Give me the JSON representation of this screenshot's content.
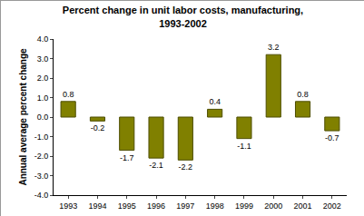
{
  "chart_data": {
    "type": "bar",
    "title": "Percent change in unit labor costs, manufacturing, 1993-2002",
    "y_label": "Annual average percent change",
    "categories": [
      "1993",
      "1994",
      "1995",
      "1996",
      "1997",
      "1998",
      "1999",
      "2000",
      "2001",
      "2002"
    ],
    "values": [
      0.8,
      -0.2,
      -1.7,
      -2.1,
      -2.2,
      0.4,
      -1.1,
      3.2,
      0.8,
      -0.7
    ],
    "color": "#808000",
    "ylim": [
      -4,
      4
    ],
    "yticks": [
      {
        "value": -4,
        "label": "-4.0"
      },
      {
        "value": -3,
        "label": "-3.0"
      },
      {
        "value": -2,
        "label": "-2.0"
      },
      {
        "value": -1,
        "label": "-1.0"
      },
      {
        "value": 0,
        "label": "0.0"
      },
      {
        "value": 1,
        "label": "1.0"
      },
      {
        "value": 2,
        "label": "2.0"
      },
      {
        "value": 3,
        "label": "3.0"
      },
      {
        "value": 4,
        "label": "4.0"
      }
    ],
    "grid": false,
    "data_labels": true
  }
}
